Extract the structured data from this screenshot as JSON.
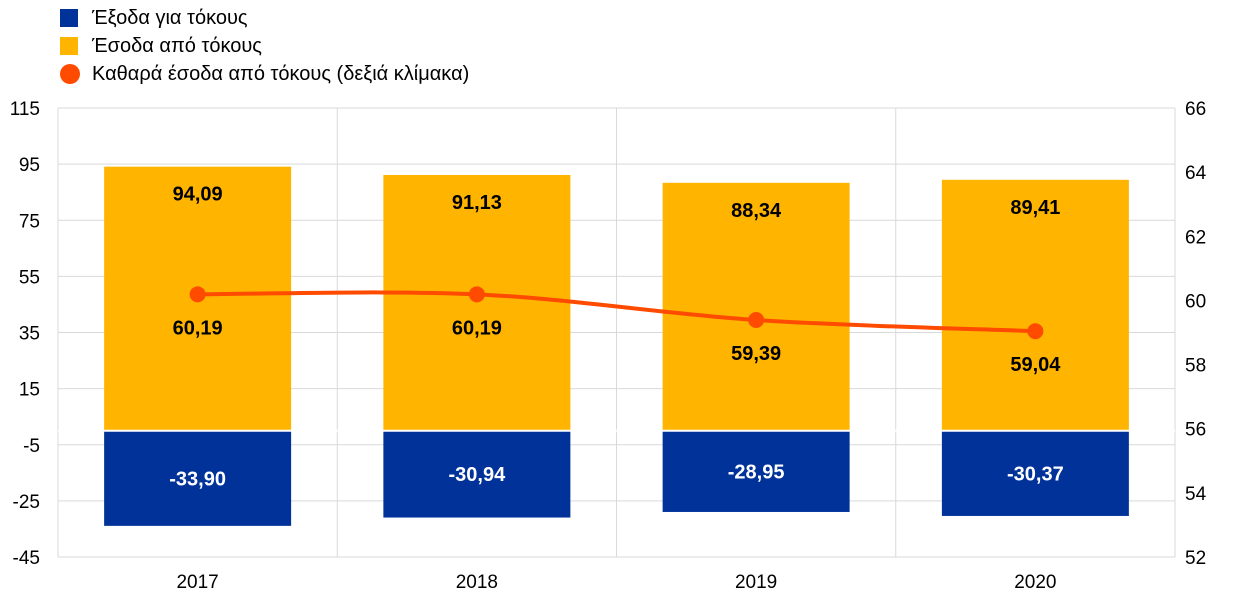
{
  "colors": {
    "expenses": "#003299",
    "income": "#FFB400",
    "net": "#FF4B00",
    "grid": "#d9d9d9",
    "label_dark": "#000000",
    "label_light": "#ffffff"
  },
  "legend": [
    {
      "key": "expenses",
      "label": "Έξοδα για τόκους",
      "marker": "square-icon"
    },
    {
      "key": "income",
      "label": "Έσοδα από τόκους",
      "marker": "square-icon"
    },
    {
      "key": "net",
      "label": "Καθαρά έσοδα από τόκους (δεξιά κλίμακα)",
      "marker": "dot-icon"
    }
  ],
  "chart_data": {
    "type": "bar",
    "categories": [
      "2017",
      "2018",
      "2019",
      "2020"
    ],
    "series": [
      {
        "name": "Έξοδα για τόκους",
        "values": [
          -33.9,
          -30.94,
          -28.95,
          -30.37
        ],
        "labels": [
          "-33,90",
          "-30,94",
          "-28,95",
          "-30,37"
        ],
        "axis": "left"
      },
      {
        "name": "Έσοδα από τόκους",
        "values": [
          94.09,
          91.13,
          88.34,
          89.41
        ],
        "labels": [
          "94,09",
          "91,13",
          "88,34",
          "89,41"
        ],
        "axis": "left"
      },
      {
        "name": "Καθαρά έσοδα από τόκους (δεξιά κλίμακα)",
        "type": "line",
        "values": [
          60.19,
          60.19,
          59.39,
          59.04
        ],
        "labels": [
          "60,19",
          "60,19",
          "59,39",
          "59,04"
        ],
        "axis": "right"
      }
    ],
    "y_left": {
      "min": -45,
      "max": 115,
      "ticks": [
        "115",
        "95",
        "75",
        "55",
        "35",
        "15",
        "-5",
        "-25",
        "-45"
      ]
    },
    "y_right": {
      "min": 52,
      "max": 66,
      "ticks": [
        "66",
        "64",
        "62",
        "60",
        "58",
        "56",
        "54",
        "52"
      ]
    },
    "grid": true,
    "legend_position": "top-left"
  }
}
